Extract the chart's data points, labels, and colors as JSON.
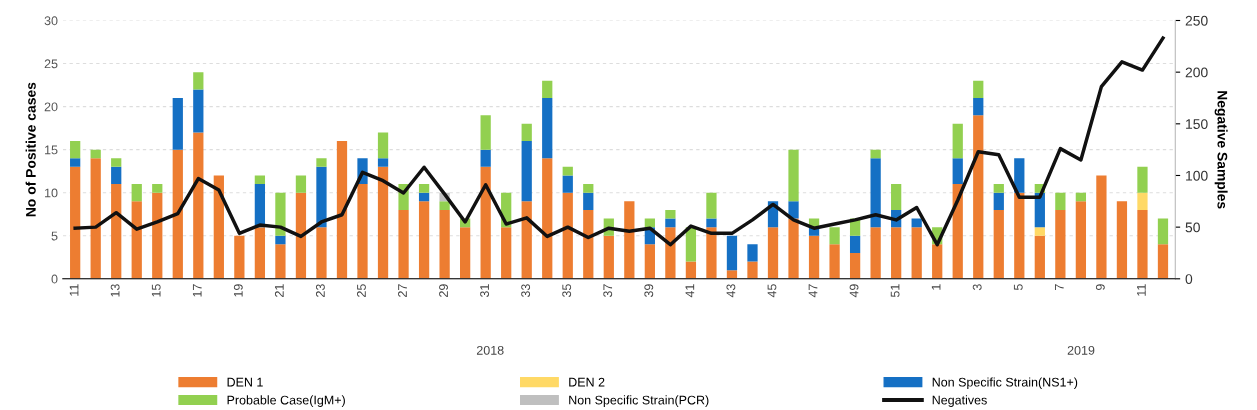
{
  "chart_data": {
    "type": "bar",
    "stacked": true,
    "ylabel": "No of Positive cases",
    "y2label": "Negative Samples",
    "categories": [
      "11",
      null,
      "13",
      null,
      "15",
      null,
      "17",
      null,
      "19",
      null,
      "21",
      null,
      "23",
      null,
      "25",
      null,
      "27",
      null,
      "29",
      null,
      "31",
      null,
      "33",
      null,
      "35",
      null,
      "37",
      null,
      "39",
      null,
      "41",
      null,
      "43",
      null,
      "45",
      null,
      "47",
      null,
      "49",
      null,
      "51",
      null,
      "1",
      null,
      "3",
      null,
      "5",
      null,
      "7",
      null,
      "9",
      null,
      "11",
      null
    ],
    "ylim": [
      0,
      30
    ],
    "yticks": [
      0,
      5,
      10,
      15,
      20,
      25,
      30
    ],
    "y2lim": [
      0,
      250
    ],
    "y2ticks": [
      0,
      50,
      100,
      150,
      200,
      250
    ],
    "grid": "y",
    "legend": "bottom",
    "annotations": [
      "2018",
      "2019"
    ],
    "series": [
      {
        "name": "DEN 1",
        "color": "#ed7d31",
        "values": [
          13,
          14,
          11,
          9,
          10,
          15,
          17,
          12,
          5,
          6,
          4,
          10,
          6,
          16,
          11,
          13,
          8,
          9,
          8,
          6,
          13,
          6,
          9,
          14,
          10,
          8,
          5,
          9,
          4,
          6,
          2,
          6,
          1,
          2,
          6,
          7,
          5,
          4,
          3,
          6,
          6,
          6,
          4,
          11,
          19,
          8,
          10,
          5,
          8,
          9,
          12,
          9,
          8,
          4
        ]
      },
      {
        "name": "DEN 2",
        "color": "#ffd966",
        "values": [
          0,
          0,
          0,
          0,
          0,
          0,
          0,
          0,
          0,
          0,
          0,
          0,
          0,
          0,
          0,
          0,
          0,
          0,
          0,
          0,
          0,
          0,
          0,
          0,
          0,
          0,
          0,
          0,
          0,
          0,
          0,
          0,
          0,
          0,
          0,
          0,
          0,
          0,
          0,
          0,
          0,
          0,
          0,
          0,
          0,
          0,
          0,
          1,
          0,
          0,
          0,
          0,
          2,
          0
        ]
      },
      {
        "name": "Non Specific Strain(NS1+)",
        "color": "#1570c4",
        "values": [
          1,
          0,
          2,
          0,
          0,
          6,
          5,
          0,
          0,
          5,
          1,
          0,
          7,
          0,
          3,
          1,
          0,
          1,
          0,
          0,
          2,
          0,
          7,
          7,
          2,
          2,
          0,
          0,
          2,
          1,
          0,
          1,
          4,
          2,
          3,
          2,
          1,
          0,
          2,
          8,
          2,
          1,
          0,
          3,
          2,
          2,
          4,
          4,
          0,
          0,
          0,
          0,
          0,
          0
        ]
      },
      {
        "name": "Probable Case(IgM+)",
        "color": "#92d050",
        "values": [
          2,
          1,
          1,
          2,
          1,
          0,
          2,
          0,
          0,
          1,
          5,
          2,
          1,
          0,
          0,
          3,
          3,
          1,
          1,
          1,
          4,
          4,
          2,
          2,
          1,
          1,
          2,
          0,
          1,
          1,
          4,
          3,
          0,
          0,
          0,
          6,
          1,
          2,
          2,
          1,
          3,
          0,
          2,
          4,
          2,
          1,
          0,
          1,
          2,
          1,
          0,
          0,
          3,
          3
        ]
      },
      {
        "name": "Non Specific Strain(PCR)",
        "color": "#bfbfbf",
        "values": [
          0,
          0,
          0,
          0,
          0,
          0,
          0,
          0,
          0,
          0,
          0,
          0,
          0,
          0,
          0,
          0,
          0,
          0,
          1,
          0,
          0,
          0,
          0,
          0,
          0,
          0,
          0,
          0,
          0,
          0,
          0,
          0,
          0,
          0,
          0,
          0,
          0,
          0,
          0,
          0,
          0,
          0,
          0,
          0,
          0,
          0,
          0,
          0,
          0,
          0,
          0,
          0,
          0,
          0
        ]
      },
      {
        "name": "Negatives",
        "color": "#111111",
        "type": "line",
        "axis": "y2",
        "values": [
          49,
          50,
          64,
          48,
          55,
          63,
          97,
          86,
          44,
          52,
          50,
          41,
          55,
          62,
          103,
          95,
          83,
          108,
          82,
          55,
          91,
          53,
          59,
          41,
          50,
          40,
          49,
          46,
          49,
          33,
          51,
          44,
          44,
          57,
          72,
          57,
          49,
          53,
          57,
          62,
          57,
          69,
          33,
          76,
          123,
          120,
          79,
          79,
          126,
          115,
          186,
          210,
          202,
          233
        ]
      }
    ]
  }
}
